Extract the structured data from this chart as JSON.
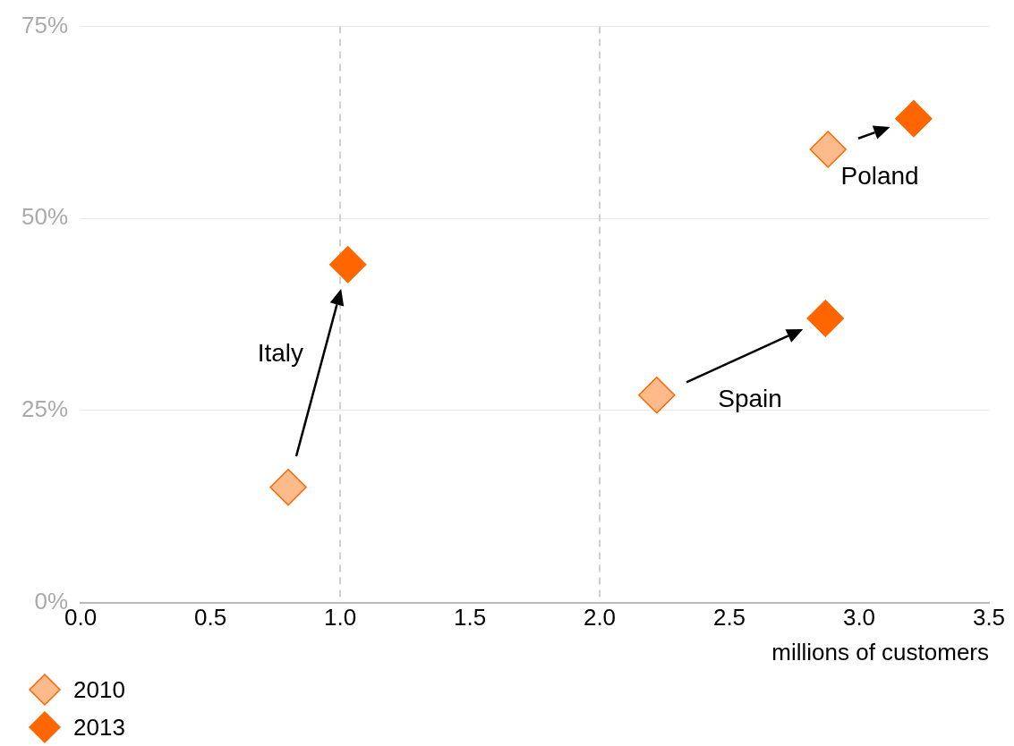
{
  "chart_data": {
    "type": "scatter",
    "xlabel": "millions of customers",
    "series": [
      {
        "name": "2010",
        "color": "#fdbb8c",
        "x": [
          0.8,
          2.22,
          2.88
        ],
        "values": [
          15,
          27,
          59
        ]
      },
      {
        "name": "2013",
        "color": "#ff6600",
        "x": [
          1.03,
          2.87,
          3.21
        ],
        "values": [
          44,
          37,
          63
        ]
      }
    ],
    "marker": "diamond",
    "legend": "bottom left",
    "grid": "y",
    "xlim": [
      0,
      3.5
    ],
    "xticks": [
      {
        "value": 0,
        "label": "0.0"
      },
      0.5,
      {
        "value": 1,
        "label": "1.0"
      },
      1.5,
      {
        "value": 2,
        "label": "2.0"
      },
      2.5,
      {
        "value": 3,
        "label": "3.0"
      },
      3.5
    ],
    "ylim": [
      0,
      75
    ],
    "yticks": [
      {
        "value": 0,
        "label": "0%"
      },
      {
        "value": 25,
        "label": "25%"
      },
      {
        "value": 50,
        "label": "50%"
      },
      {
        "value": 75,
        "label": "75%"
      }
    ],
    "ref_lines": [
      {
        "axis": "x",
        "value": 1,
        "line_style": "dashed",
        "color": "#d0d0d0"
      },
      {
        "axis": "x",
        "value": 2,
        "line_style": "dashed",
        "color": "#d0d0d0"
      }
    ],
    "annotations": [
      "Italy",
      "Spain",
      "Poland"
    ]
  }
}
